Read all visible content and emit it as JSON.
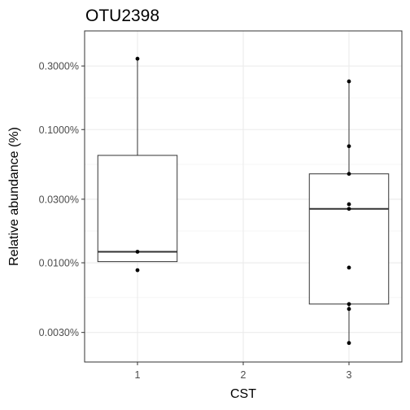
{
  "chart_data": {
    "type": "box",
    "title": "OTU2398",
    "xlabel": "CST",
    "ylabel": "Relative abundance (%)",
    "y_scale": "log10",
    "ylim": [
      0.0018,
      0.55
    ],
    "grid": true,
    "categories": [
      "1",
      "2",
      "3"
    ],
    "y_ticks": [
      {
        "value": 0.003,
        "label": "0.0030%"
      },
      {
        "value": 0.01,
        "label": "0.0100%"
      },
      {
        "value": 0.03,
        "label": "0.0300%"
      },
      {
        "value": 0.1,
        "label": "0.1000%"
      },
      {
        "value": 0.3,
        "label": "0.3000%"
      }
    ],
    "boxes": [
      {
        "category": "1",
        "q1": 0.0102,
        "median": 0.0121,
        "q3": 0.064,
        "whisker_low": 0.0102,
        "whisker_high": 0.34
      },
      {
        "category": "2",
        "q1": null,
        "median": null,
        "q3": null,
        "whisker_low": null,
        "whisker_high": null
      },
      {
        "category": "3",
        "q1": 0.0049,
        "median": 0.0254,
        "q3": 0.0465,
        "whisker_low": 0.0025,
        "whisker_high": 0.23
      }
    ],
    "points": [
      {
        "category": "1",
        "values": [
          0.34,
          0.0121,
          0.0088
        ]
      },
      {
        "category": "2",
        "values": []
      },
      {
        "category": "3",
        "values": [
          0.23,
          0.075,
          0.0465,
          0.0275,
          0.0254,
          0.0092,
          0.0049,
          0.0045,
          0.0025
        ]
      }
    ]
  }
}
